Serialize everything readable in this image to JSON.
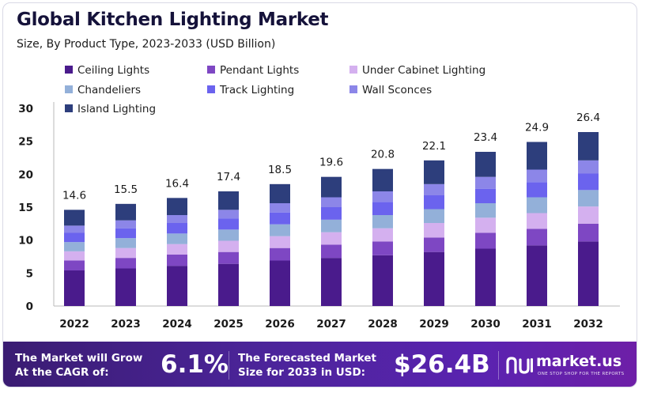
{
  "header": {
    "title": "Global Kitchen Lighting Market",
    "subtitle": "Size, By Product Type, 2023-2033 (USD Billion)"
  },
  "chart_data": {
    "type": "bar",
    "stacked": true,
    "categories": [
      "2022",
      "2023",
      "2024",
      "2025",
      "2026",
      "2027",
      "2028",
      "2029",
      "2030",
      "2031",
      "2032"
    ],
    "totals": [
      14.6,
      15.5,
      16.4,
      17.4,
      18.5,
      19.6,
      20.8,
      22.1,
      23.4,
      24.9,
      26.4
    ],
    "total_labels": [
      "14.6",
      "15.5",
      "16.4",
      "17.4",
      "18.5",
      "19.6",
      "20.8",
      "22.1",
      "23.4",
      "24.9",
      "26.4"
    ],
    "series": [
      {
        "name": "Ceiling Lights",
        "color": "#4a1b8c",
        "values": [
          5.4,
          5.7,
          6.1,
          6.4,
          6.9,
          7.3,
          7.7,
          8.2,
          8.7,
          9.2,
          9.8
        ]
      },
      {
        "name": "Pendant Lights",
        "color": "#7e47c3",
        "values": [
          1.5,
          1.6,
          1.7,
          1.8,
          1.9,
          2.0,
          2.1,
          2.2,
          2.4,
          2.5,
          2.7
        ]
      },
      {
        "name": "Under Cabinet Lighting",
        "color": "#d4b0ef",
        "values": [
          1.4,
          1.5,
          1.6,
          1.7,
          1.8,
          1.9,
          2.0,
          2.2,
          2.3,
          2.4,
          2.6
        ]
      },
      {
        "name": "Chandeliers",
        "color": "#93b0d9",
        "values": [
          1.4,
          1.5,
          1.6,
          1.7,
          1.8,
          1.9,
          2.0,
          2.1,
          2.2,
          2.4,
          2.5
        ]
      },
      {
        "name": "Track Lighting",
        "color": "#6b63ee",
        "values": [
          1.4,
          1.5,
          1.6,
          1.7,
          1.8,
          1.9,
          2.0,
          2.1,
          2.2,
          2.3,
          2.5
        ]
      },
      {
        "name": "Wall Sconces",
        "color": "#8c86e8",
        "values": [
          1.1,
          1.2,
          1.2,
          1.3,
          1.4,
          1.5,
          1.6,
          1.7,
          1.8,
          1.9,
          2.0
        ]
      },
      {
        "name": "Island Lighting",
        "color": "#2d3e7c",
        "values": [
          2.4,
          2.5,
          2.6,
          2.8,
          2.9,
          3.1,
          3.4,
          3.6,
          3.8,
          4.2,
          4.3
        ]
      }
    ],
    "ylim": [
      0,
      30
    ],
    "yticks": [
      0,
      5,
      10,
      15,
      20,
      25,
      30
    ],
    "ytick_labels": [
      "0",
      "5",
      "10",
      "15",
      "20",
      "25",
      "30"
    ],
    "xlabel": "",
    "ylabel": "",
    "legend_position": "top"
  },
  "footer": {
    "cagr_label_line1": "The Market will Grow",
    "cagr_label_line2": "At the CAGR of:",
    "cagr_value": "6.1%",
    "forecast_label_line1": "The Forecasted Market",
    "forecast_label_line2": "Size for 2033 in USD:",
    "forecast_value": "$26.4B",
    "brand": "market.us",
    "brand_tagline": "ONE STOP SHOP FOR THE REPORTS"
  }
}
